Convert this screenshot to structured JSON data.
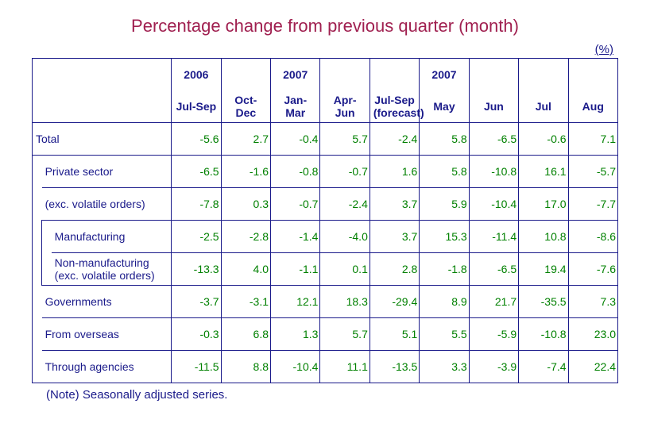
{
  "title": "Percentage change from previous quarter (month)",
  "unit": "(%)",
  "note": "(Note) Seasonally adjusted series.",
  "header": {
    "years": [
      "2006",
      "",
      "2007",
      "",
      "",
      "2007",
      "",
      "",
      ""
    ],
    "periods": [
      "Jul-Sep",
      "Oct-Dec",
      "Jan-Mar",
      "Apr-Jun",
      "Jul-Sep\n(forecast)",
      "May",
      "Jun",
      "Jul",
      "Aug"
    ]
  },
  "rows": [
    {
      "indent": 0,
      "label": "Total",
      "values": [
        "-5.6",
        "2.7",
        "-0.4",
        "5.7",
        "-2.4",
        "5.8",
        "-6.5",
        "-0.6",
        "7.1"
      ]
    },
    {
      "indent": 1,
      "label": "Private sector",
      "values": [
        "-6.5",
        "-1.6",
        "-0.8",
        "-0.7",
        "1.6",
        "5.8",
        "-10.8",
        "16.1",
        "-5.7"
      ]
    },
    {
      "indent": 1,
      "label": "  (exc. volatile orders)",
      "values": [
        "-7.8",
        "0.3",
        "-0.7",
        "-2.4",
        "3.7",
        "5.9",
        "-10.4",
        "17.0",
        "-7.7"
      ]
    },
    {
      "indent": 2,
      "label": "Manufacturing",
      "values": [
        "-2.5",
        "-2.8",
        "-1.4",
        "-4.0",
        "3.7",
        "15.3",
        "-11.4",
        "10.8",
        "-8.6"
      ]
    },
    {
      "indent": 2,
      "label": "Non-manufacturing\n(exc. volatile orders)",
      "values": [
        "-13.3",
        "4.0",
        "-1.1",
        "0.1",
        "2.8",
        "-1.8",
        "-6.5",
        "19.4",
        "-7.6"
      ]
    },
    {
      "indent": 1,
      "label": "Governments",
      "values": [
        "-3.7",
        "-3.1",
        "12.1",
        "18.3",
        "-29.4",
        "8.9",
        "21.7",
        "-35.5",
        "7.3"
      ]
    },
    {
      "indent": 1,
      "label": "From overseas",
      "values": [
        "-0.3",
        "6.8",
        "1.3",
        "5.7",
        "5.1",
        "5.5",
        "-5.9",
        "-10.8",
        "23.0"
      ]
    },
    {
      "indent": 1,
      "label": "Through agencies",
      "values": [
        "-11.5",
        "8.8",
        "-10.4",
        "11.1",
        "-13.5",
        "3.3",
        "-3.9",
        "-7.4",
        "22.4"
      ]
    }
  ]
}
